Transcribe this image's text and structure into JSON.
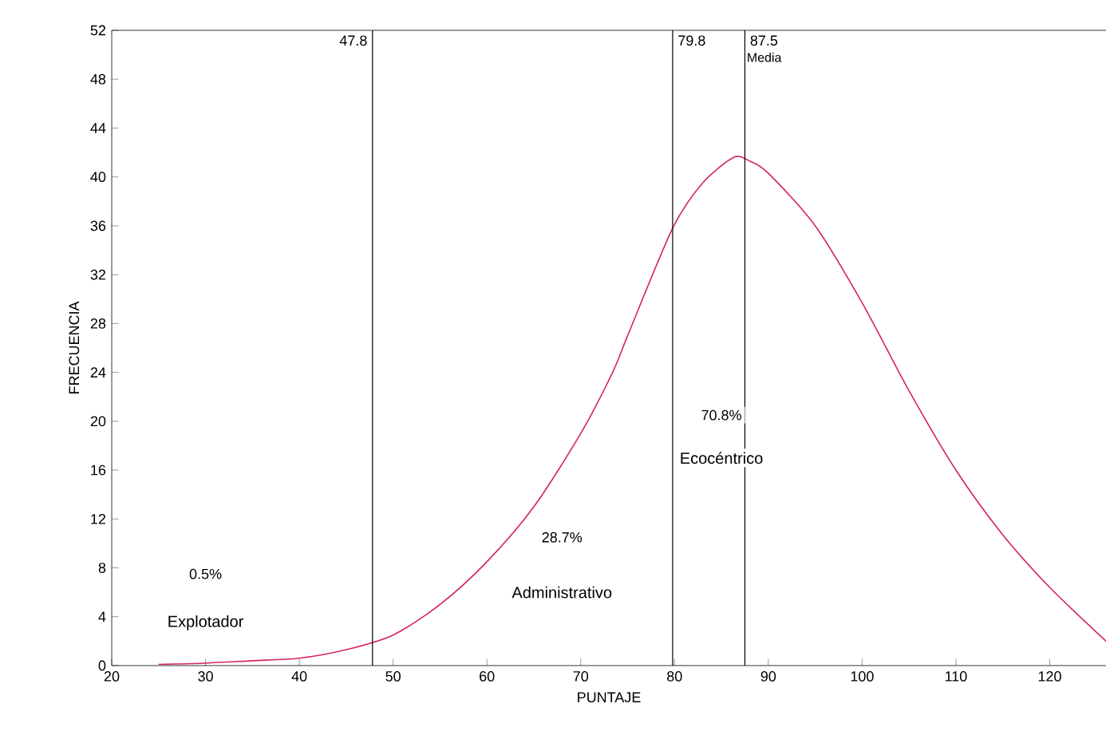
{
  "chart_data": {
    "type": "line",
    "xlabel": "PUNTAJE",
    "ylabel": "FRECUENCIA",
    "series": [
      {
        "color": "#d6245a",
        "x": [
          25,
          30,
          35,
          40,
          45,
          50,
          55,
          60,
          65,
          70,
          73.4,
          75,
          79.8,
          83,
          86.3,
          88,
          90,
          95,
          100,
          105,
          110,
          115,
          120,
          126
        ],
        "values": [
          0.1,
          0.2,
          0.4,
          0.6,
          1.3,
          2.5,
          5,
          8.5,
          13,
          19,
          24,
          27,
          35.8,
          39.5,
          41.6,
          41.3,
          40.3,
          36,
          29.7,
          22.5,
          16,
          10.7,
          6.4,
          2
        ]
      }
    ],
    "xlim": [
      20,
      126
    ],
    "ylim": [
      0,
      52
    ],
    "xticks": [
      20,
      30,
      40,
      50,
      60,
      70,
      80,
      90,
      100,
      110,
      120
    ],
    "yticks": [
      0,
      4,
      8,
      12,
      16,
      20,
      24,
      28,
      32,
      36,
      40,
      44,
      48,
      52
    ],
    "ref_lines": [
      {
        "axis": "x",
        "value": 47.8,
        "label": "47.8",
        "color": "#000000"
      },
      {
        "axis": "x",
        "value": 79.8,
        "label": "79.8",
        "color": "#000000"
      },
      {
        "axis": "x",
        "value": 87.5,
        "label": "87.5",
        "color": "#000000"
      }
    ],
    "annotations": [
      "Media",
      "0.5%",
      "Explotador",
      "28.7%",
      "Administrativo",
      "70.8%",
      "Ecocéntrico"
    ],
    "marker": "none",
    "line_style": "solid"
  }
}
